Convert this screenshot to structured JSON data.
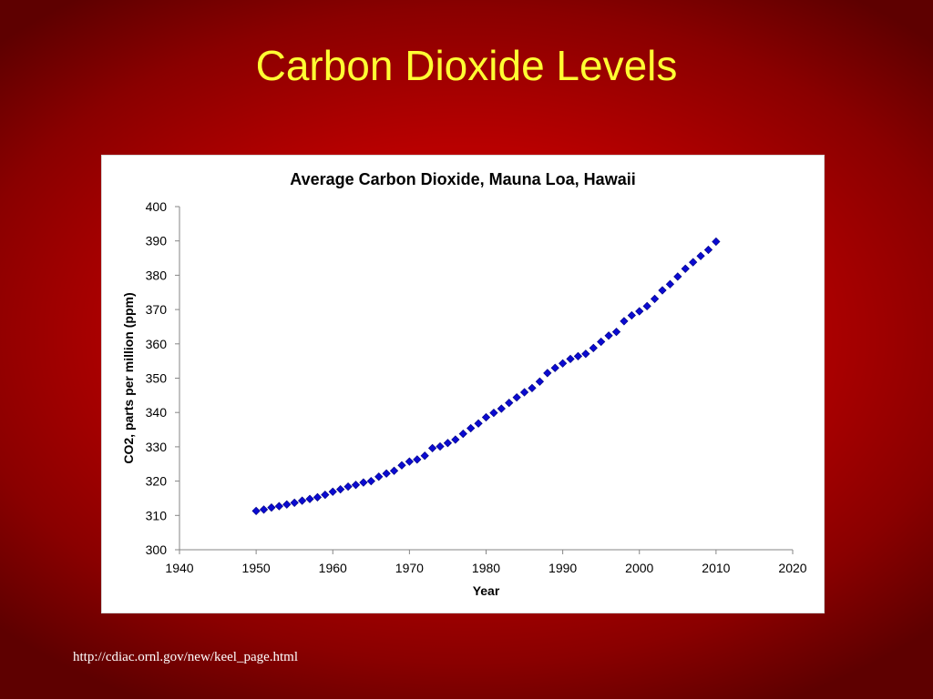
{
  "slide": {
    "title": "Carbon Dioxide Levels",
    "source_url": "http://cdiac.ornl.gov/new/keel_page.html",
    "title_color": "#ffff33",
    "background_color": "#c00000"
  },
  "chart_data": {
    "type": "scatter",
    "title": "Average Carbon Dioxide, Mauna Loa, Hawaii",
    "xlabel": "Year",
    "ylabel": "CO2, parts per million (ppm)",
    "xlim": [
      1940,
      2020
    ],
    "ylim": [
      300,
      400
    ],
    "xticks": [
      1940,
      1950,
      1960,
      1970,
      1980,
      1990,
      2000,
      2010,
      2020
    ],
    "yticks": [
      300,
      310,
      320,
      330,
      340,
      350,
      360,
      370,
      380,
      390,
      400
    ],
    "grid": false,
    "legend": "none",
    "marker": "diamond",
    "marker_color": "#0a0ad0",
    "series": [
      {
        "x": [
          1950,
          1951,
          1952,
          1953,
          1954,
          1955,
          1956,
          1957,
          1958,
          1959,
          1960,
          1961,
          1962,
          1963,
          1964,
          1965,
          1966,
          1967,
          1968,
          1969,
          1970,
          1971,
          1972,
          1973,
          1974,
          1975,
          1976,
          1977,
          1978,
          1979,
          1980,
          1981,
          1982,
          1983,
          1984,
          1985,
          1986,
          1987,
          1988,
          1989,
          1990,
          1991,
          1992,
          1993,
          1994,
          1995,
          1996,
          1997,
          1998,
          1999,
          2000,
          2001,
          2002,
          2003,
          2004,
          2005,
          2006,
          2007,
          2008,
          2009,
          2010
        ],
        "y": [
          311.3,
          311.7,
          312.3,
          312.7,
          313.2,
          313.7,
          314.3,
          314.8,
          315.3,
          316.0,
          316.9,
          317.6,
          318.4,
          318.9,
          319.6,
          320.0,
          321.3,
          322.2,
          323.0,
          324.6,
          325.7,
          326.3,
          327.4,
          329.6,
          330.1,
          331.1,
          332.1,
          333.8,
          335.4,
          336.8,
          338.6,
          339.9,
          341.1,
          342.8,
          344.4,
          345.9,
          347.1,
          349.0,
          351.5,
          353.0,
          354.3,
          355.6,
          356.4,
          357.1,
          358.8,
          360.6,
          362.4,
          363.5,
          366.6,
          368.3,
          369.5,
          371.0,
          373.1,
          375.6,
          377.4,
          379.6,
          381.9,
          383.8,
          385.6,
          387.4,
          389.8
        ]
      }
    ]
  }
}
